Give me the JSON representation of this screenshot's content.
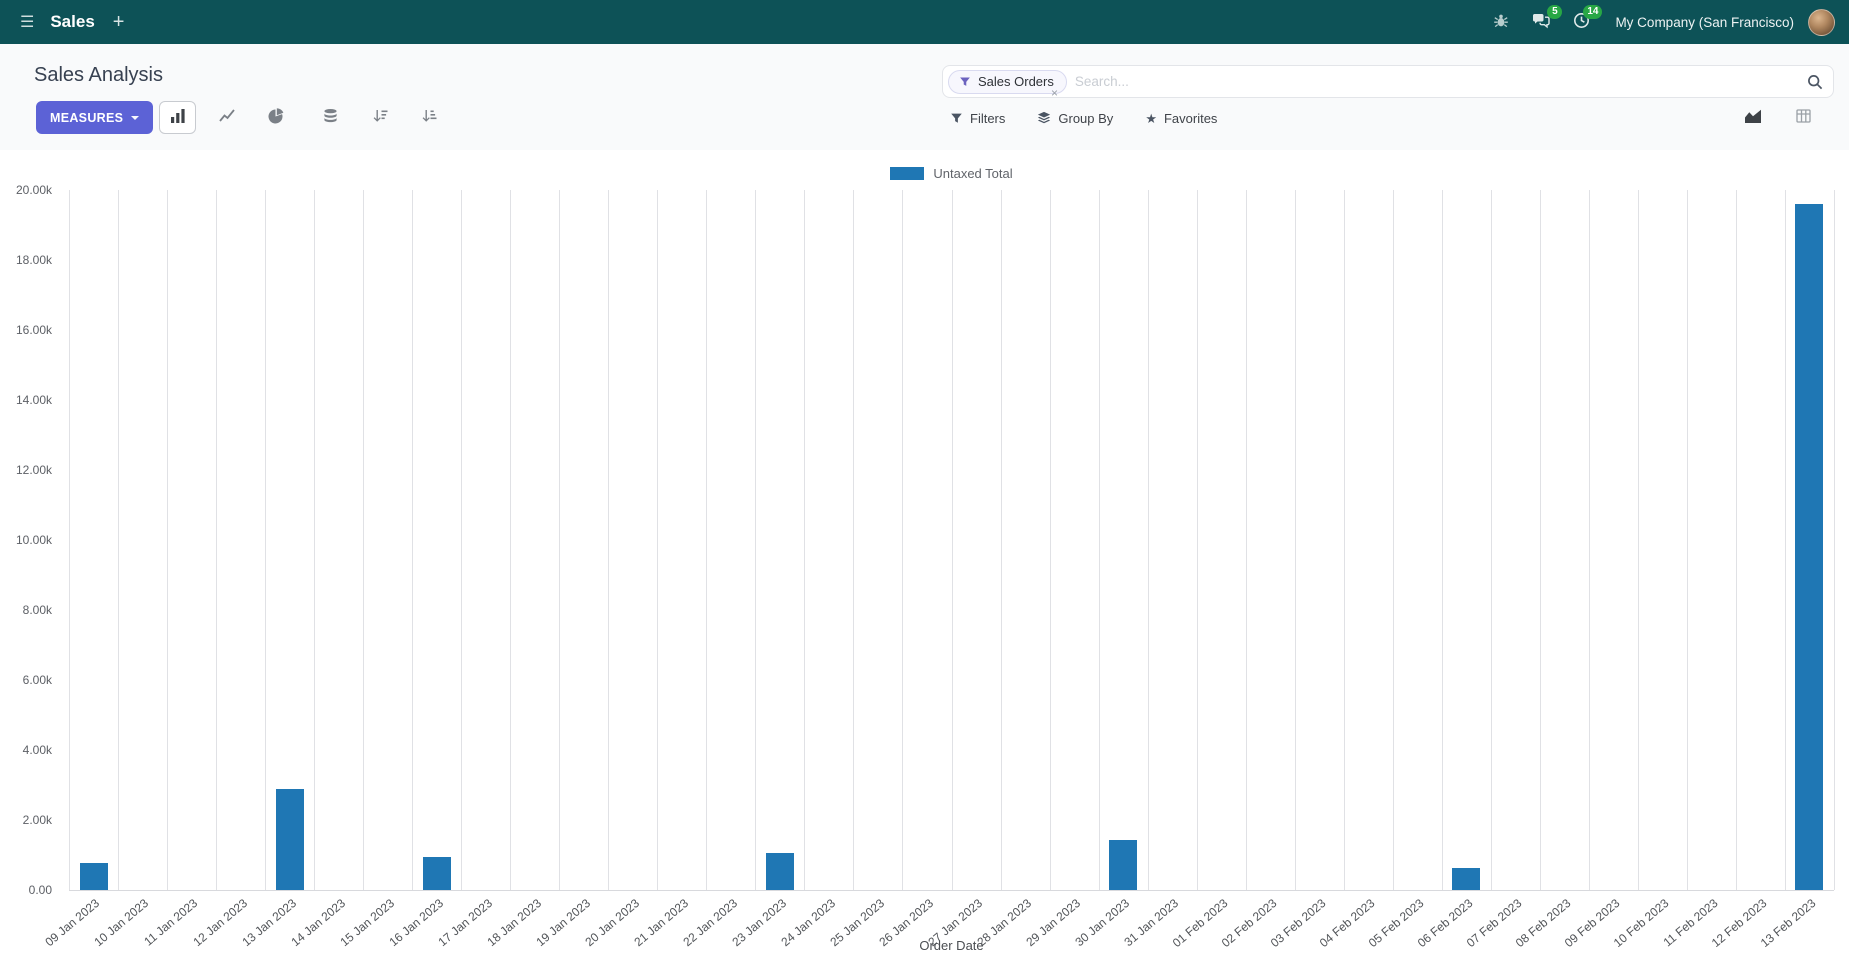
{
  "navbar": {
    "app_name": "Sales",
    "company": "My Company (San Francisco)",
    "messages_badge": "5",
    "activities_badge": "14"
  },
  "icons": {
    "menu": "☰",
    "plus": "+",
    "close": "×",
    "star": "★"
  },
  "control_panel": {
    "title": "Sales Analysis",
    "measures_label": "MEASURES",
    "filters_label": "Filters",
    "group_by_label": "Group By",
    "favorites_label": "Favorites",
    "search": {
      "facet_label": "Sales Orders",
      "placeholder": "Search..."
    }
  },
  "chart_data": {
    "type": "bar",
    "title": "",
    "xlabel": "Order Date",
    "ylabel": "",
    "ylim": [
      0,
      20000
    ],
    "ytick_step": 2000,
    "ytick_labels": [
      "0.00",
      "2.00k",
      "4.00k",
      "6.00k",
      "8.00k",
      "10.00k",
      "12.00k",
      "14.00k",
      "16.00k",
      "18.00k",
      "20.00k"
    ],
    "legend_position": "top",
    "grid": "vertical",
    "categories": [
      "09 Jan 2023",
      "10 Jan 2023",
      "11 Jan 2023",
      "12 Jan 2023",
      "13 Jan 2023",
      "14 Jan 2023",
      "15 Jan 2023",
      "16 Jan 2023",
      "17 Jan 2023",
      "18 Jan 2023",
      "19 Jan 2023",
      "20 Jan 2023",
      "21 Jan 2023",
      "22 Jan 2023",
      "23 Jan 2023",
      "24 Jan 2023",
      "25 Jan 2023",
      "26 Jan 2023",
      "27 Jan 2023",
      "28 Jan 2023",
      "29 Jan 2023",
      "30 Jan 2023",
      "31 Jan 2023",
      "01 Feb 2023",
      "02 Feb 2023",
      "03 Feb 2023",
      "04 Feb 2023",
      "05 Feb 2023",
      "06 Feb 2023",
      "07 Feb 2023",
      "08 Feb 2023",
      "09 Feb 2023",
      "10 Feb 2023",
      "11 Feb 2023",
      "12 Feb 2023",
      "13 Feb 2023"
    ],
    "series": [
      {
        "name": "Untaxed Total",
        "color": "#1f77b4",
        "values": [
          780,
          0,
          0,
          0,
          2900,
          0,
          0,
          950,
          0,
          0,
          0,
          0,
          0,
          0,
          1050,
          0,
          0,
          0,
          0,
          0,
          0,
          1430,
          0,
          0,
          0,
          0,
          0,
          0,
          630,
          0,
          0,
          0,
          0,
          0,
          0,
          19600
        ]
      }
    ]
  },
  "colors": {
    "navbar_bg": "#0d5257",
    "primary": "#5c62d6",
    "bar": "#1f77b4",
    "badge": "#28a745",
    "facet_icon": "#6c63bf"
  }
}
